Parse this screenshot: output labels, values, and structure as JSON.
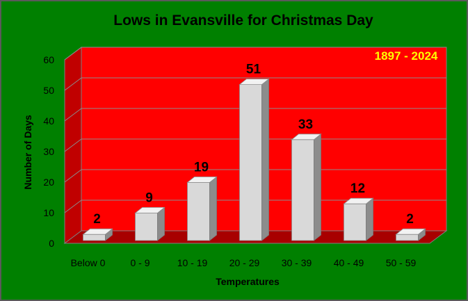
{
  "chart_data": {
    "type": "bar",
    "title": "Lows in Evansville for Christmas Day",
    "annotation": "1897 - 2024",
    "xlabel": "Temperatures",
    "ylabel": "Number of Days",
    "categories": [
      "Below 0",
      "0 - 9",
      "10 - 19",
      "20 - 29",
      "30 - 39",
      "40 - 49",
      "50 - 59"
    ],
    "values": [
      2,
      9,
      19,
      51,
      33,
      12,
      2
    ],
    "ylim": [
      0,
      60
    ],
    "yticks": [
      0,
      10,
      20,
      30,
      40,
      50,
      60
    ],
    "grid": true,
    "legend": false,
    "style": "3d-column",
    "colors": {
      "background": "#008000",
      "plot_back_wall": "#FF0000",
      "plot_side_wall": "#C00000",
      "plot_floor": "#A80000",
      "bar_front": "#D9D9D9",
      "bar_top": "#F2F2F2",
      "bar_side": "#8C8C8C",
      "annotation": "#FFFF00",
      "text": "#000000"
    }
  }
}
